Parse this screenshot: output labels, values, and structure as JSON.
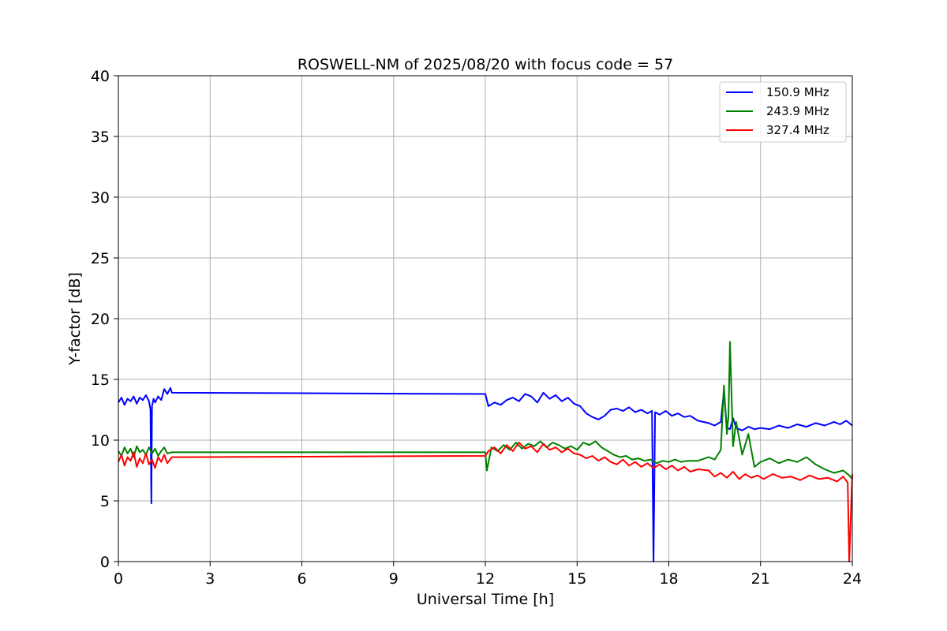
{
  "chart_data": {
    "type": "line",
    "title": "ROSWELL-NM of 2025/08/20 with focus code = 57",
    "xlabel": "Universal Time [h]",
    "ylabel": "Y-factor [dB]",
    "xlim": [
      0,
      24
    ],
    "ylim": [
      0,
      40
    ],
    "xticks": [
      0,
      3,
      6,
      9,
      12,
      15,
      18,
      21,
      24
    ],
    "yticks": [
      0,
      5,
      10,
      15,
      20,
      25,
      30,
      35,
      40
    ],
    "grid": true,
    "legend_position": "top-right",
    "series": [
      {
        "name": "150.9 MHz",
        "color": "#0000ff",
        "x": [
          0.0,
          0.1,
          0.2,
          0.3,
          0.4,
          0.5,
          0.6,
          0.7,
          0.8,
          0.9,
          1.0,
          1.05,
          1.08,
          1.1,
          1.15,
          1.2,
          1.3,
          1.4,
          1.5,
          1.6,
          1.7,
          1.75,
          12.0,
          12.1,
          12.3,
          12.5,
          12.7,
          12.9,
          13.1,
          13.3,
          13.5,
          13.7,
          13.9,
          14.1,
          14.3,
          14.5,
          14.7,
          14.9,
          15.1,
          15.3,
          15.5,
          15.7,
          15.9,
          16.1,
          16.3,
          16.5,
          16.7,
          16.9,
          17.1,
          17.3,
          17.45,
          17.5,
          17.55,
          17.7,
          17.9,
          18.1,
          18.3,
          18.5,
          18.7,
          18.95,
          19.3,
          19.5,
          19.7,
          19.8,
          19.9,
          20.0,
          20.1,
          20.2,
          20.4,
          20.6,
          20.8,
          21.0,
          21.3,
          21.6,
          21.9,
          22.2,
          22.5,
          22.8,
          23.1,
          23.4,
          23.6,
          23.8,
          23.9,
          24.0
        ],
        "y": [
          13.1,
          13.5,
          12.9,
          13.4,
          13.2,
          13.6,
          13.0,
          13.5,
          13.3,
          13.7,
          13.2,
          12.5,
          4.8,
          12.8,
          13.4,
          13.1,
          13.6,
          13.3,
          14.2,
          13.8,
          14.3,
          13.9,
          13.8,
          12.8,
          13.1,
          12.9,
          13.3,
          13.5,
          13.2,
          13.8,
          13.6,
          13.1,
          13.9,
          13.4,
          13.7,
          13.2,
          13.5,
          13.0,
          12.8,
          12.2,
          11.9,
          11.7,
          12.0,
          12.5,
          12.6,
          12.4,
          12.7,
          12.3,
          12.5,
          12.2,
          12.4,
          0.0,
          12.3,
          12.1,
          12.4,
          12.0,
          12.2,
          11.9,
          12.0,
          11.6,
          11.4,
          11.2,
          11.5,
          14.0,
          11.0,
          10.9,
          11.8,
          11.0,
          10.8,
          11.1,
          10.9,
          11.0,
          10.9,
          11.2,
          11.0,
          11.3,
          11.1,
          11.4,
          11.2,
          11.5,
          11.3,
          11.6,
          11.4,
          11.2
        ]
      },
      {
        "name": "243.9 MHz",
        "color": "#008000",
        "x": [
          0.0,
          0.1,
          0.2,
          0.3,
          0.4,
          0.5,
          0.6,
          0.7,
          0.8,
          0.9,
          1.0,
          1.1,
          1.2,
          1.3,
          1.4,
          1.5,
          1.6,
          1.75,
          12.0,
          12.05,
          12.2,
          12.4,
          12.6,
          12.8,
          13.0,
          13.2,
          13.4,
          13.6,
          13.8,
          14.0,
          14.2,
          14.4,
          14.6,
          14.8,
          15.0,
          15.2,
          15.4,
          15.6,
          15.8,
          16.0,
          16.2,
          16.4,
          16.6,
          16.8,
          17.0,
          17.2,
          17.4,
          17.6,
          17.8,
          18.0,
          18.2,
          18.4,
          18.6,
          18.95,
          19.3,
          19.5,
          19.7,
          19.8,
          19.9,
          19.95,
          20.0,
          20.1,
          20.2,
          20.4,
          20.6,
          20.8,
          21.0,
          21.3,
          21.6,
          21.9,
          22.2,
          22.5,
          22.8,
          23.1,
          23.4,
          23.7,
          23.9,
          24.0
        ],
        "y": [
          9.1,
          8.7,
          9.4,
          8.9,
          9.3,
          8.6,
          9.5,
          9.0,
          9.2,
          8.8,
          9.4,
          8.9,
          9.3,
          8.7,
          9.1,
          9.4,
          8.9,
          9.0,
          9.0,
          7.5,
          9.4,
          9.1,
          9.6,
          9.2,
          9.8,
          9.3,
          9.7,
          9.5,
          9.9,
          9.4,
          9.8,
          9.6,
          9.3,
          9.5,
          9.2,
          9.8,
          9.6,
          9.9,
          9.4,
          9.1,
          8.8,
          8.6,
          8.7,
          8.4,
          8.5,
          8.3,
          8.4,
          8.1,
          8.3,
          8.2,
          8.4,
          8.2,
          8.3,
          8.3,
          8.6,
          8.4,
          9.2,
          14.5,
          10.5,
          12.0,
          18.1,
          9.5,
          11.5,
          8.8,
          10.5,
          7.8,
          8.2,
          8.5,
          8.1,
          8.4,
          8.2,
          8.6,
          8.0,
          7.6,
          7.3,
          7.5,
          7.1,
          6.8
        ]
      },
      {
        "name": "327.4 MHz",
        "color": "#ff0000",
        "x": [
          0.0,
          0.1,
          0.2,
          0.3,
          0.4,
          0.5,
          0.6,
          0.7,
          0.8,
          0.9,
          1.0,
          1.1,
          1.2,
          1.3,
          1.4,
          1.5,
          1.6,
          1.75,
          12.0,
          12.1,
          12.3,
          12.5,
          12.7,
          12.9,
          13.1,
          13.3,
          13.5,
          13.7,
          13.9,
          14.1,
          14.3,
          14.5,
          14.7,
          14.9,
          15.1,
          15.3,
          15.5,
          15.7,
          15.9,
          16.1,
          16.3,
          16.5,
          16.7,
          16.9,
          17.1,
          17.3,
          17.5,
          17.7,
          17.9,
          18.1,
          18.3,
          18.5,
          18.7,
          18.95,
          19.3,
          19.5,
          19.7,
          19.9,
          20.1,
          20.3,
          20.5,
          20.7,
          20.9,
          21.1,
          21.4,
          21.7,
          22.0,
          22.3,
          22.6,
          22.9,
          23.2,
          23.5,
          23.7,
          23.85,
          23.9,
          24.0
        ],
        "y": [
          8.2,
          8.8,
          7.9,
          8.6,
          8.3,
          9.0,
          7.8,
          8.5,
          8.1,
          8.9,
          8.0,
          8.4,
          7.7,
          8.6,
          8.2,
          8.8,
          8.1,
          8.6,
          8.7,
          9.1,
          9.4,
          8.9,
          9.6,
          9.1,
          9.8,
          9.3,
          9.5,
          9.0,
          9.7,
          9.2,
          9.4,
          9.0,
          9.3,
          8.9,
          8.8,
          8.5,
          8.7,
          8.3,
          8.6,
          8.2,
          8.0,
          8.4,
          7.9,
          8.2,
          7.8,
          8.1,
          7.7,
          8.0,
          7.6,
          7.9,
          7.5,
          7.8,
          7.4,
          7.6,
          7.5,
          7.0,
          7.3,
          6.9,
          7.4,
          6.8,
          7.2,
          6.9,
          7.1,
          6.8,
          7.2,
          6.9,
          7.0,
          6.7,
          7.1,
          6.8,
          6.9,
          6.6,
          7.0,
          6.5,
          0.0,
          7.2
        ]
      }
    ]
  }
}
